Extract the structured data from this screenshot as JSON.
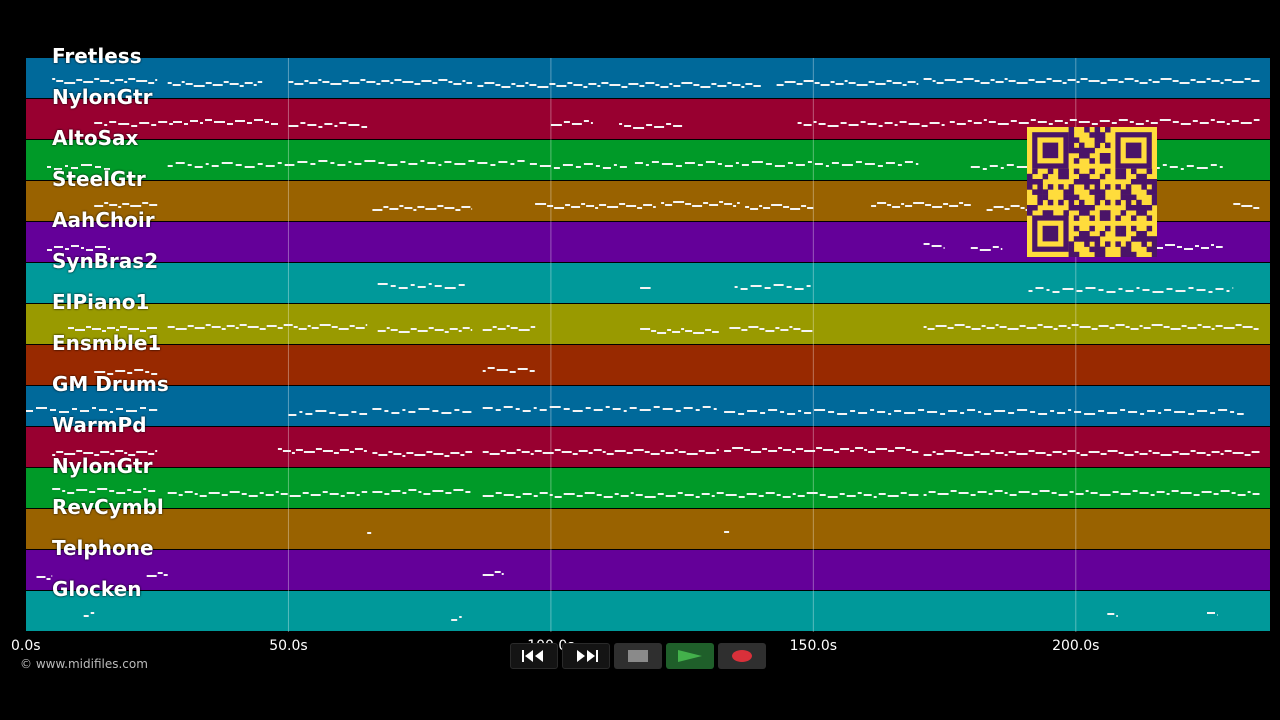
{
  "tracks": [
    {
      "name": "Fretless",
      "color": "#00699a"
    },
    {
      "name": "NylonGtr",
      "color": "#980030"
    },
    {
      "name": "AltoSax",
      "color": "#009a28"
    },
    {
      "name": "SteelGtr",
      "color": "#996200"
    },
    {
      "name": "AahChoir",
      "color": "#640099"
    },
    {
      "name": "SynBras2",
      "color": "#00999a"
    },
    {
      "name": "ElPiano1",
      "color": "#999a00"
    },
    {
      "name": "Ensmble1",
      "color": "#982900"
    },
    {
      "name": "GM Drums",
      "color": "#00699a"
    },
    {
      "name": "WarmPd",
      "color": "#980030"
    },
    {
      "name": "NylonGtr",
      "color": "#009a28"
    },
    {
      "name": "RevCymbl",
      "color": "#996200"
    },
    {
      "name": "Telphone",
      "color": "#640099"
    },
    {
      "name": "Glocken",
      "color": "#00999a"
    }
  ],
  "time_axis": {
    "max_seconds": 237,
    "ticks": [
      {
        "seconds": 0,
        "label": "0.0s"
      },
      {
        "seconds": 50,
        "label": "50.0s"
      },
      {
        "seconds": 100,
        "label": "100.0s"
      },
      {
        "seconds": 150,
        "label": "150.0s"
      },
      {
        "seconds": 200,
        "label": "200.0s"
      }
    ]
  },
  "note_segments": [
    [
      [
        5,
        25
      ],
      [
        27,
        45
      ],
      [
        50,
        85
      ],
      [
        86,
        140
      ],
      [
        143,
        170
      ],
      [
        171,
        235
      ]
    ],
    [
      [
        13,
        28
      ],
      [
        28,
        48
      ],
      [
        50,
        65
      ],
      [
        100,
        108
      ],
      [
        113,
        125
      ],
      [
        147,
        175
      ],
      [
        176,
        235
      ]
    ],
    [
      [
        4,
        16
      ],
      [
        27,
        50
      ],
      [
        50,
        95
      ],
      [
        96,
        115
      ],
      [
        116,
        170
      ],
      [
        180,
        228
      ]
    ],
    [
      [
        13,
        25
      ],
      [
        66,
        85
      ],
      [
        97,
        120
      ],
      [
        121,
        136
      ],
      [
        137,
        150
      ],
      [
        161,
        180
      ],
      [
        183,
        200
      ],
      [
        230,
        235
      ]
    ],
    [
      [
        4,
        16
      ],
      [
        171,
        175
      ],
      [
        180,
        186
      ],
      [
        193,
        228
      ]
    ],
    [
      [
        67,
        84
      ],
      [
        117,
        119
      ],
      [
        135,
        150
      ],
      [
        191,
        230
      ]
    ],
    [
      [
        8,
        25
      ],
      [
        27,
        65
      ],
      [
        67,
        85
      ],
      [
        87,
        97
      ],
      [
        117,
        132
      ],
      [
        134,
        150
      ],
      [
        171,
        235
      ]
    ],
    [
      [
        13,
        25
      ],
      [
        87,
        97
      ]
    ],
    [
      [
        0,
        25
      ],
      [
        50,
        65
      ],
      [
        66,
        85
      ],
      [
        87,
        132
      ],
      [
        133,
        232
      ]
    ],
    [
      [
        5,
        25
      ],
      [
        48,
        65
      ],
      [
        66,
        85
      ],
      [
        87,
        132
      ],
      [
        133,
        170
      ],
      [
        171,
        235
      ]
    ],
    [
      [
        5,
        25
      ],
      [
        27,
        65
      ],
      [
        66,
        85
      ],
      [
        87,
        170
      ],
      [
        171,
        235
      ]
    ],
    [
      [
        65,
        66
      ],
      [
        133,
        134
      ]
    ],
    [
      [
        2,
        5
      ],
      [
        23,
        27
      ],
      [
        87,
        91
      ]
    ],
    [
      [
        11,
        13
      ],
      [
        81,
        83
      ],
      [
        206,
        208
      ],
      [
        225,
        227
      ]
    ]
  ],
  "branding": {
    "copyright": "© www.midifiles.com"
  },
  "transport": {
    "rewind_icon": "rewind-icon",
    "fast_forward_icon": "fast-forward-icon",
    "stop_icon": "stop-icon",
    "play_icon": "play-icon",
    "record_icon": "record-icon",
    "play_color": "#43b04b",
    "record_color": "#d9303a"
  },
  "qr": {
    "fg": "#4a1468",
    "bg": "#ffdc3c"
  }
}
